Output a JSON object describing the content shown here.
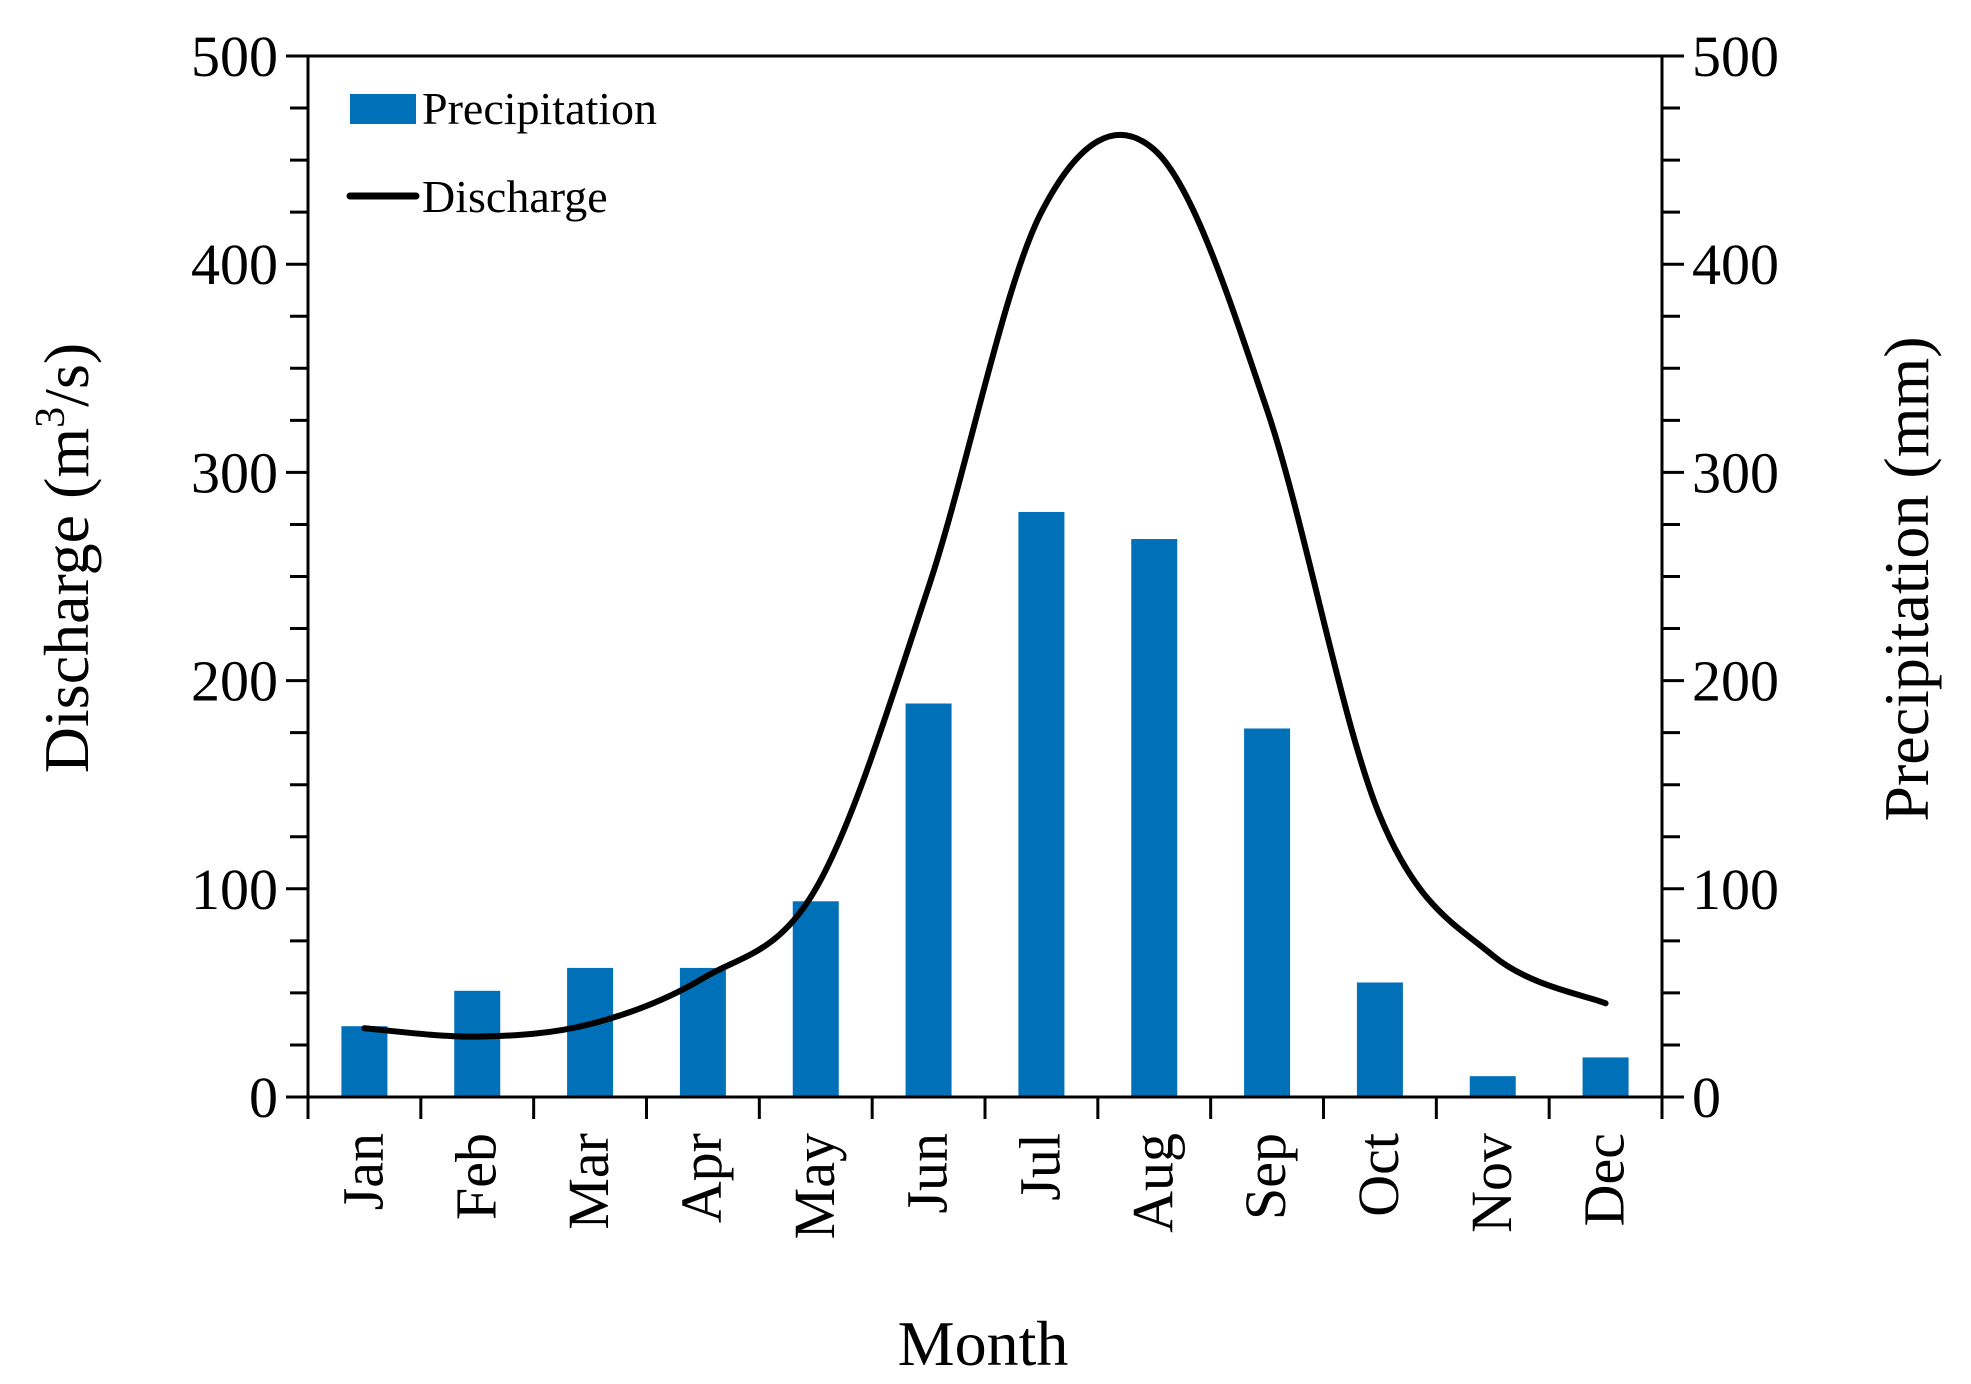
{
  "chart_data": {
    "type": "bar+line",
    "categories": [
      "Jan",
      "Feb",
      "Mar",
      "Apr",
      "May",
      "Jun",
      "Jul",
      "Aug",
      "Sep",
      "Oct",
      "Nov",
      "Dec"
    ],
    "series": [
      {
        "name": "Precipitation",
        "type": "bar",
        "axis": "right",
        "color": "#0070b8",
        "values": [
          34,
          51,
          62,
          62,
          94,
          189,
          281,
          268,
          177,
          55,
          10,
          19
        ]
      },
      {
        "name": "Discharge",
        "type": "line",
        "axis": "left",
        "color": "#000000",
        "values": [
          33,
          29,
          35,
          57,
          100,
          245,
          425,
          455,
          330,
          135,
          68,
          45
        ]
      }
    ],
    "xlabel": "Month",
    "ylabel_left_prefix": "Discharge (m",
    "ylabel_left_sup": "3",
    "ylabel_left_suffix": "/s)",
    "ylabel_right": "Precipitation (mm)",
    "ylim_left": [
      0,
      500
    ],
    "ylim_right": [
      0,
      500
    ],
    "yticks": [
      "0",
      "100",
      "200",
      "300",
      "400",
      "500"
    ],
    "legend_position": "top-left"
  }
}
